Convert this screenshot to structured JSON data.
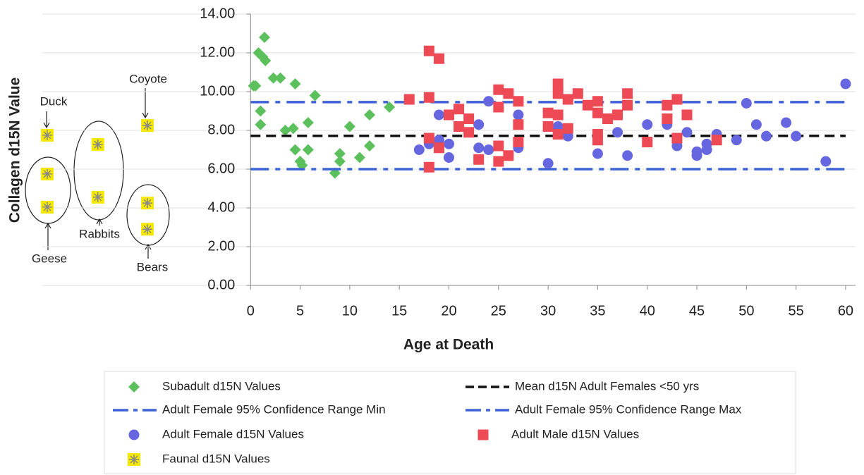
{
  "chart_data": {
    "type": "scatter",
    "xlabel": "Age at Death",
    "ylabel": "Collagen d15N Value",
    "xlim": [
      -21,
      61
    ],
    "ylim": [
      0,
      14
    ],
    "xticks": [
      0,
      5,
      10,
      15,
      20,
      25,
      30,
      35,
      40,
      45,
      50,
      55,
      60
    ],
    "yticks": [
      {
        "value": 0,
        "label": "0.00"
      },
      {
        "value": 2,
        "label": "2.00"
      },
      {
        "value": 4,
        "label": "4.00"
      },
      {
        "value": 6,
        "label": "6.00"
      },
      {
        "value": 8,
        "label": "8.00"
      },
      {
        "value": 10,
        "label": "10.00"
      },
      {
        "value": 12,
        "label": "12.00"
      },
      {
        "value": 14,
        "label": "14.00"
      }
    ],
    "grid": true,
    "annotations": [
      "Duck",
      "Coyote",
      "Geese",
      "Rabbits",
      "Bears"
    ],
    "series": [
      {
        "name": "Subadult d15N Values",
        "kind": "scatter",
        "marker": "diamond",
        "color": "#5cc05c",
        "x": [
          0.3,
          0.5,
          0.8,
          1.0,
          1.0,
          1.2,
          1.4,
          1.5,
          2.3,
          3,
          3.5,
          4.3,
          4.5,
          4.5,
          5,
          5.2,
          5.8,
          5.8,
          6.5,
          8.5,
          9,
          9,
          10,
          11,
          12,
          12,
          14
        ],
        "values": [
          10.3,
          10.3,
          12.0,
          9.0,
          8.3,
          11.8,
          12.8,
          11.6,
          10.7,
          10.7,
          8.0,
          8.1,
          10.4,
          7.0,
          6.4,
          6.2,
          8.4,
          7.0,
          9.8,
          5.8,
          6.8,
          6.4,
          8.2,
          6.6,
          8.8,
          7.2,
          9.2
        ]
      },
      {
        "name": "Mean d15N Adult Females <50 yrs",
        "kind": "line",
        "style": "dash",
        "color": "#111111",
        "x": [
          0,
          60
        ],
        "values": [
          7.72,
          7.72
        ]
      },
      {
        "name": "Adult Female 95% Confidence Range Min",
        "kind": "line",
        "style": "dashdot",
        "color": "#3f62d6",
        "x": [
          0,
          60
        ],
        "values": [
          6.0,
          6.0
        ]
      },
      {
        "name": "Adult Female 95% Confidence Range Max",
        "kind": "line",
        "style": "dashdot",
        "color": "#3f62d6",
        "x": [
          0,
          60
        ],
        "values": [
          9.46,
          9.46
        ]
      },
      {
        "name": "Adult Female d15N Values",
        "kind": "scatter",
        "marker": "circle",
        "color": "#6666e0",
        "x": [
          17,
          18,
          19,
          19,
          20,
          20,
          23,
          23,
          24,
          24,
          27,
          27,
          30,
          31,
          32,
          35,
          37,
          38,
          40,
          42,
          43,
          44,
          45,
          45,
          46,
          46,
          47,
          49,
          50,
          51,
          52,
          54,
          55,
          58,
          60
        ],
        "values": [
          7.0,
          7.3,
          8.8,
          7.5,
          7.3,
          6.6,
          8.3,
          7.1,
          7.0,
          9.5,
          8.8,
          7.1,
          6.3,
          8.2,
          7.7,
          6.8,
          7.9,
          6.7,
          8.3,
          8.3,
          7.2,
          7.9,
          6.9,
          6.7,
          7.3,
          7.0,
          7.8,
          7.5,
          9.4,
          8.3,
          7.7,
          8.4,
          7.7,
          6.4,
          10.4
        ]
      },
      {
        "name": "Adult Male d15N Values",
        "kind": "scatter",
        "marker": "square",
        "color": "#ee4a55",
        "x": [
          16,
          18,
          18,
          18,
          18,
          19,
          19,
          20,
          21,
          21,
          22,
          22,
          23,
          25,
          25,
          25,
          25,
          26,
          26,
          27,
          27,
          27,
          30,
          30,
          31,
          31,
          31,
          31,
          32,
          32,
          33,
          34,
          35,
          35,
          35,
          35,
          36,
          37,
          38,
          38,
          40,
          42,
          42,
          43,
          43,
          44,
          47
        ],
        "values": [
          9.6,
          12.1,
          9.7,
          7.6,
          6.1,
          11.7,
          7.1,
          8.8,
          9.1,
          8.2,
          8.6,
          7.9,
          6.5,
          10.1,
          9.2,
          7.2,
          6.4,
          9.9,
          6.7,
          9.5,
          8.3,
          7.4,
          8.9,
          8.2,
          10.4,
          9.9,
          8.8,
          7.8,
          8.1,
          9.6,
          9.9,
          9.3,
          9.5,
          8.9,
          7.8,
          7.5,
          8.6,
          8.8,
          9.9,
          9.3,
          7.4,
          9.3,
          8.6,
          9.6,
          7.6,
          8.8,
          7.5
        ]
      },
      {
        "name": "Faunal d15N Values",
        "kind": "scatter",
        "marker": "star",
        "color": "#f5e800",
        "x": [
          -20.5,
          -20.5,
          -20.5,
          -15.4,
          -15.4,
          -10.4,
          -10.4,
          -10.4
        ],
        "values": [
          7.75,
          5.75,
          4.04,
          7.27,
          4.55,
          8.25,
          4.25,
          2.9
        ]
      }
    ]
  }
}
